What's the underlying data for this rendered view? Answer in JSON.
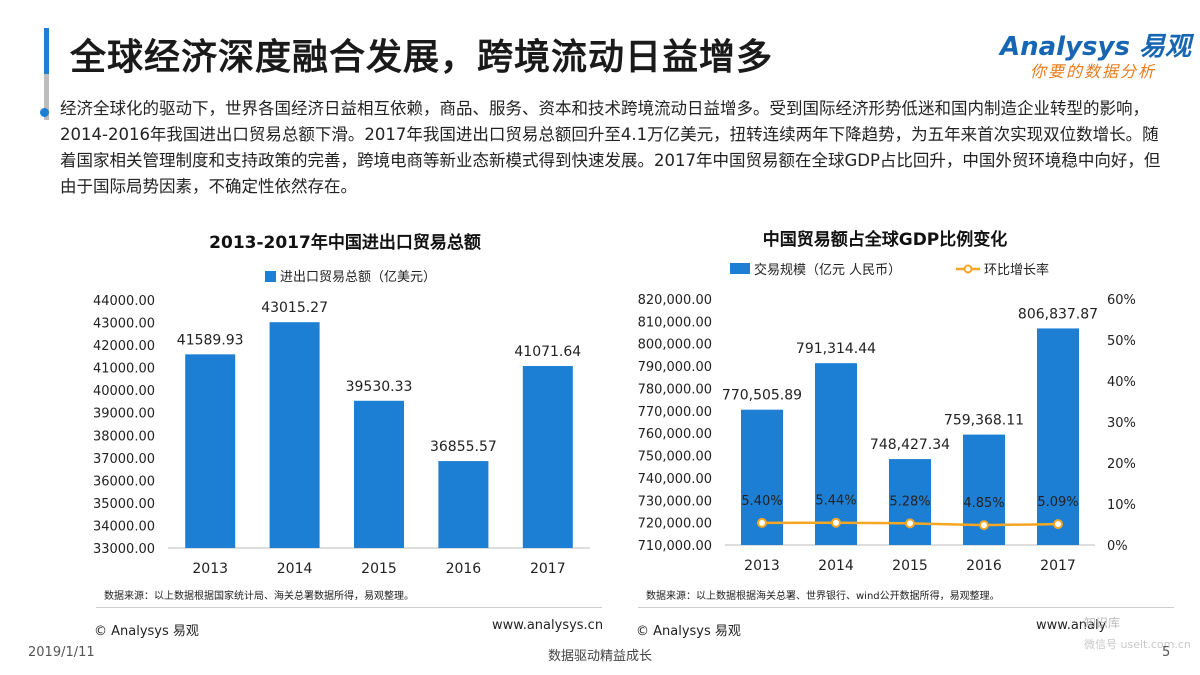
{
  "header": {
    "title": "全球经济深度融合发展，跨境流动日益增多",
    "bar_colors": [
      "#1d7fd4",
      "#bdbdbd"
    ],
    "logo_main": "Analysys 易观",
    "logo_sub": "你要的数据分析"
  },
  "body": {
    "paragraph": "经济全球化的驱动下，世界各国经济日益相互依赖，商品、服务、资本和技术跨境流动日益增多。受到国际经济形势低迷和国内制造企业转型的影响，2014-2016年我国进出口贸易总额下滑。2017年我国进出口贸易总额回升至4.1万亿美元，扭转连续两年下降趋势，为五年来首次实现双位数增长。随着国家相关管理制度和支持政策的完善，跨境电商等新业态新模式得到快速发展。2017年中国贸易额在全球GDP占比回升，中国外贸环境稳中向好，但由于国际局势因素，不确定性依然存在。"
  },
  "chart_data": [
    {
      "type": "bar",
      "title": "2013-2017年中国进出口贸易总额",
      "categories": [
        "2013",
        "2014",
        "2015",
        "2016",
        "2017"
      ],
      "series": [
        {
          "name": "进出口贸易总额（亿美元）",
          "values": [
            41589.93,
            43015.27,
            39530.33,
            36855.57,
            41071.64
          ]
        }
      ],
      "value_labels": [
        "41589.93",
        "43015.27",
        "39530.33",
        "36855.57",
        "41071.64"
      ],
      "ylim": [
        33000,
        44000
      ],
      "yticks": [
        "44000.00",
        "43000.00",
        "42000.00",
        "41000.00",
        "40000.00",
        "39000.00",
        "38000.00",
        "37000.00",
        "36000.00",
        "35000.00",
        "34000.00",
        "33000.00"
      ],
      "grid": false,
      "legend": "top",
      "color": "#1d7fd4",
      "source": "数据来源：以上数据根据国家统计局、海关总署数据所得，易观整理。"
    },
    {
      "type": "bar",
      "title": "中国贸易额占全球GDP比例变化",
      "categories": [
        "2013",
        "2014",
        "2015",
        "2016",
        "2017"
      ],
      "series": [
        {
          "name": "交易规模（亿元 人民币）",
          "type": "bar",
          "axis": "left",
          "values": [
            770505.89,
            791314.44,
            748427.34,
            759368.11,
            806837.87
          ]
        },
        {
          "name": "环比增长率",
          "type": "line",
          "axis": "right",
          "values": [
            5.4,
            5.44,
            5.28,
            4.85,
            5.09
          ]
        }
      ],
      "value_labels": [
        "770,505.89",
        "791,314.44",
        "748,427.34",
        "759,368.11",
        "806,837.87"
      ],
      "line_labels": [
        "5.40%",
        "5.44%",
        "5.28%",
        "4.85%",
        "5.09%"
      ],
      "ylim": [
        710000,
        820000
      ],
      "yticks": [
        "820,000.00",
        "810,000.00",
        "800,000.00",
        "790,000.00",
        "780,000.00",
        "770,000.00",
        "760,000.00",
        "750,000.00",
        "740,000.00",
        "730,000.00",
        "720,000.00",
        "710,000.00"
      ],
      "y2lim": [
        0,
        60
      ],
      "y2ticks": [
        "60%",
        "50%",
        "40%",
        "30%",
        "20%",
        "10%",
        "0%"
      ],
      "grid": false,
      "legend": "top",
      "color": "#1d7fd4",
      "line_color": "#f5a623",
      "source": "数据来源：以上数据根据海关总署、世界银行、wind公开数据所得，易观整理。"
    }
  ],
  "footer": {
    "copyright_left": "© Analysys 易观",
    "website_left": "www.analysys.cn",
    "copyright_right": "© Analysys 易观",
    "website_right": "www.analy",
    "date": "2019/1/11",
    "slogan": "数据驱动精益成长",
    "page": "5",
    "wechat_line1": "知识库",
    "wechat_line2": "微信号 useit.com.cn"
  }
}
